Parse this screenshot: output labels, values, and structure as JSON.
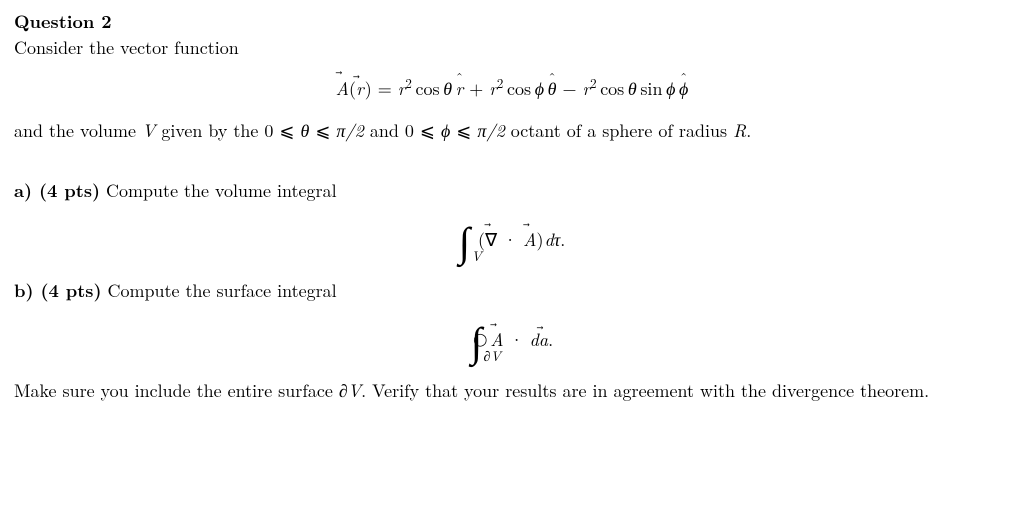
{
  "colors": {
    "text": "#000000",
    "background": "#ffffff"
  },
  "typography": {
    "body_font": "serif (Computer Modern style)",
    "body_size_pt": 13.5,
    "heading_weight": "bold"
  },
  "heading": "Question 2",
  "intro": "Consider the vector function",
  "vector_function": {
    "lhs_vec": "A",
    "lhs_arg_vec": "r",
    "term1_coeff": "r",
    "term1_exp": "2",
    "term1_trig": "cos",
    "term1_angle": "θ",
    "term1_unit": "r",
    "op1": "+",
    "term2_coeff": "r",
    "term2_exp": "2",
    "term2_trig": "cos",
    "term2_angle": "ϕ",
    "term2_unit": "θ",
    "op2": "−",
    "term3_coeff": "r",
    "term3_exp": "2",
    "term3_trigA": "cos",
    "term3_angleA": "θ",
    "term3_trigB": "sin",
    "term3_angleB": "ϕ",
    "term3_unit": "ϕ"
  },
  "volume_desc": {
    "pre": "and the volume ",
    "V": "V",
    "mid": " given by the ",
    "zero": "0",
    "le": "⩽",
    "theta": "θ",
    "pi_over_2": "π/2",
    "and_word": " and ",
    "phi": "ϕ",
    "post": " octant of a sphere of radius ",
    "R": "R",
    "period": "."
  },
  "partA": {
    "label": "a) (4 pts)",
    "prompt": " Compute the volume integral",
    "integral": {
      "region": "V",
      "nabla": "∇",
      "dot": "·",
      "A": "A",
      "dt": "dτ",
      "period": "."
    }
  },
  "partB": {
    "label": "b) (4 pts)",
    "prompt": " Compute the surface integral",
    "integral": {
      "region": "∂V",
      "A": "A",
      "dot": "·",
      "da_d": "d",
      "da_a": "a",
      "period": "."
    }
  },
  "closing": {
    "pre": "Make sure you include the entire surface ",
    "dV": "∂V",
    "post": ". Verify that your results are in agreement with the divergence theorem."
  }
}
